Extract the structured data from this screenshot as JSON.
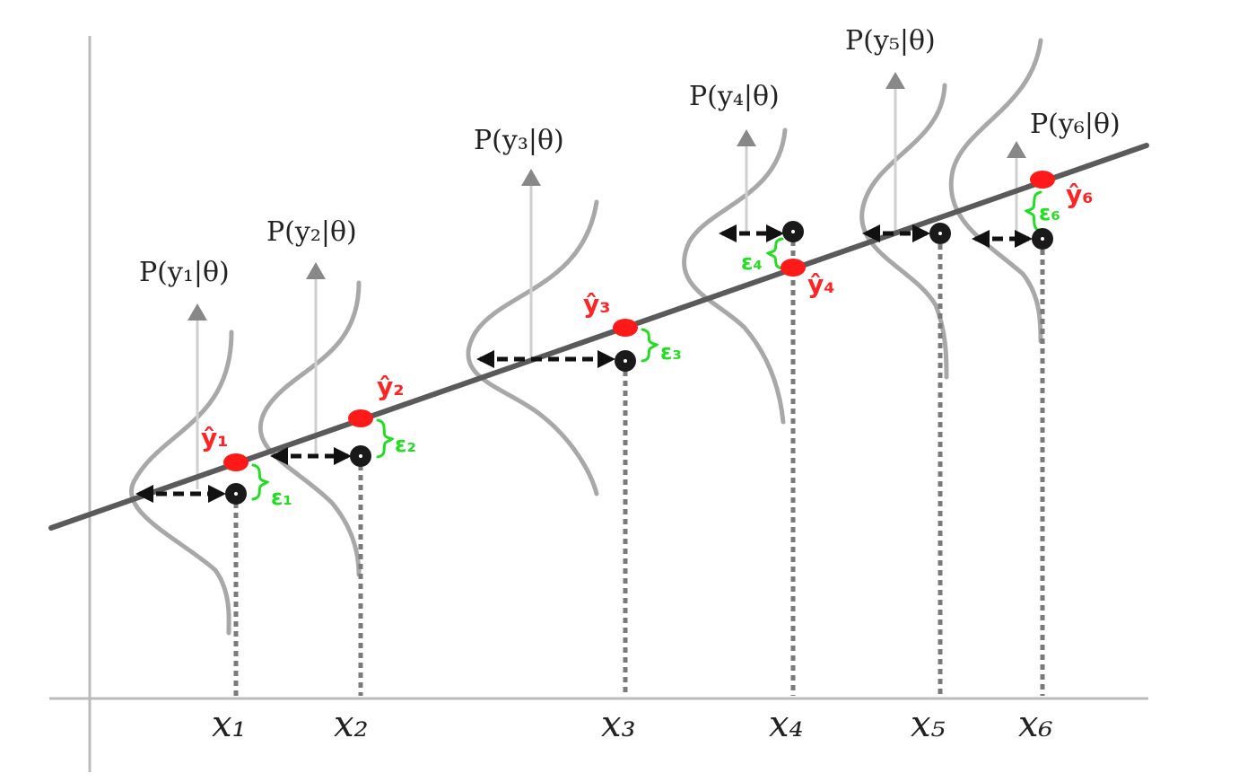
{
  "diagram": {
    "x_labels": [
      "x₁",
      "x₂",
      "x₃",
      "x₄",
      "x₅",
      "x₆"
    ],
    "prob_labels": [
      "P(y₁|θ)",
      "P(y₂|θ)",
      "P(y₃|θ)",
      "P(y₄|θ)",
      "P(y₅|θ)",
      "P(y₆|θ)"
    ],
    "yhat_labels": [
      "ŷ₁",
      "ŷ₂",
      "ŷ₃",
      "ŷ₄",
      "ŷ₆"
    ],
    "error_labels": [
      "ε₁",
      "ε₂",
      "ε₃",
      "ε₄",
      "ε₆"
    ],
    "colors": {
      "regression_line": "#5a5a5a",
      "axes": "#bbbbbb",
      "gaussian": "#a8a8a8",
      "prediction_point": "#ff1a1a",
      "observed_point": "#1a1a1a",
      "error_annotation": "#22dd22",
      "arrow": "#111111",
      "up_arrow": "#888888"
    }
  }
}
